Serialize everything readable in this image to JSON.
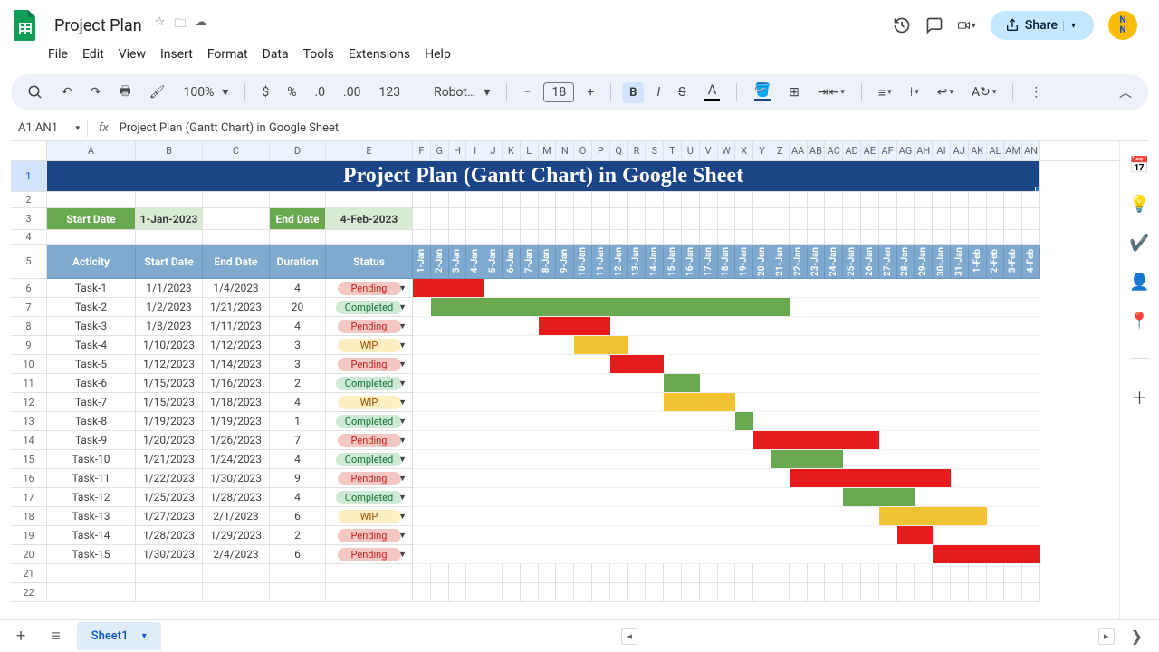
{
  "doc": {
    "name": "Project Plan"
  },
  "menubar": [
    "File",
    "Edit",
    "View",
    "Insert",
    "Format",
    "Data",
    "Tools",
    "Extensions",
    "Help"
  ],
  "toolbar": {
    "zoom": "100%",
    "font": "Robot…",
    "font_size": "18"
  },
  "share_label": "Share",
  "namebox": "A1:AN1",
  "formula": "Project Plan (Gantt Chart) in Google Sheet",
  "title_text": "Project Plan (Gantt Chart) in Google Sheet",
  "labels": {
    "start": "Start Date",
    "end": "End Date",
    "start_val": "1-Jan-2023",
    "end_val": "4-Feb-2023"
  },
  "headers": [
    "Acticity",
    "Start Date",
    "End Date",
    "Duration",
    "Status"
  ],
  "col_letters": [
    "A",
    "B",
    "C",
    "D",
    "E",
    "F",
    "G",
    "H",
    "I",
    "J",
    "K",
    "L",
    "M",
    "N",
    "O",
    "P",
    "Q",
    "R",
    "S",
    "T",
    "U",
    "V",
    "W",
    "X",
    "Y",
    "Z",
    "AA",
    "AB",
    "AC",
    "AD",
    "AE",
    "AF",
    "AG",
    "AH",
    "AI",
    "AJ",
    "AK",
    "AL",
    "AM",
    "AN"
  ],
  "col_widths": {
    "A": 98,
    "B": 74,
    "C": 74,
    "D": 62,
    "E": 96,
    "gantt": 19.8
  },
  "date_headers": [
    "1-Jan",
    "2-Jan",
    "3-Jan",
    "4-Jan",
    "5-Jan",
    "6-Jan",
    "7-Jan",
    "8-Jan",
    "9-Jan",
    "10-Jan",
    "11-Jan",
    "12-Jan",
    "13-Jan",
    "14-Jan",
    "15-Jan",
    "16-Jan",
    "17-Jan",
    "18-Jan",
    "19-Jan",
    "20-Jan",
    "21-Jan",
    "22-Jan",
    "23-Jan",
    "24-Jan",
    "25-Jan",
    "26-Jan",
    "27-Jan",
    "28-Jan",
    "29-Jan",
    "30-Jan",
    "31-Jan",
    "1-Feb",
    "2-Feb",
    "3-Feb",
    "4-Feb"
  ],
  "status_colors": {
    "Pending": {
      "bg": "#f4c7c3",
      "fg": "#c5221f"
    },
    "Completed": {
      "bg": "#ceead6",
      "fg": "#137333"
    },
    "WIP": {
      "bg": "#feefc3",
      "fg": "#994d00"
    }
  },
  "gantt_colors": {
    "Pending": "#e61c1c",
    "Completed": "#6aa84f",
    "WIP": "#f1c232"
  },
  "tasks": [
    {
      "name": "Task-1",
      "start": "1/1/2023",
      "end": "1/4/2023",
      "dur": "4",
      "status": "Pending",
      "g0": 0,
      "g1": 4
    },
    {
      "name": "Task-2",
      "start": "1/2/2023",
      "end": "1/21/2023",
      "dur": "20",
      "status": "Completed",
      "g0": 1,
      "g1": 21
    },
    {
      "name": "Task-3",
      "start": "1/8/2023",
      "end": "1/11/2023",
      "dur": "4",
      "status": "Pending",
      "g0": 7,
      "g1": 11
    },
    {
      "name": "Task-4",
      "start": "1/10/2023",
      "end": "1/12/2023",
      "dur": "3",
      "status": "WIP",
      "g0": 9,
      "g1": 12
    },
    {
      "name": "Task-5",
      "start": "1/12/2023",
      "end": "1/14/2023",
      "dur": "3",
      "status": "Pending",
      "g0": 11,
      "g1": 14
    },
    {
      "name": "Task-6",
      "start": "1/15/2023",
      "end": "1/16/2023",
      "dur": "2",
      "status": "Completed",
      "g0": 14,
      "g1": 16
    },
    {
      "name": "Task-7",
      "start": "1/15/2023",
      "end": "1/18/2023",
      "dur": "4",
      "status": "WIP",
      "g0": 14,
      "g1": 18
    },
    {
      "name": "Task-8",
      "start": "1/19/2023",
      "end": "1/19/2023",
      "dur": "1",
      "status": "Completed",
      "g0": 18,
      "g1": 19
    },
    {
      "name": "Task-9",
      "start": "1/20/2023",
      "end": "1/26/2023",
      "dur": "7",
      "status": "Pending",
      "g0": 19,
      "g1": 26
    },
    {
      "name": "Task-10",
      "start": "1/21/2023",
      "end": "1/24/2023",
      "dur": "4",
      "status": "Completed",
      "g0": 20,
      "g1": 24
    },
    {
      "name": "Task-11",
      "start": "1/22/2023",
      "end": "1/30/2023",
      "dur": "9",
      "status": "Pending",
      "g0": 21,
      "g1": 30
    },
    {
      "name": "Task-12",
      "start": "1/25/2023",
      "end": "1/28/2023",
      "dur": "4",
      "status": "Completed",
      "g0": 24,
      "g1": 28
    },
    {
      "name": "Task-13",
      "start": "1/27/2023",
      "end": "2/1/2023",
      "dur": "6",
      "status": "WIP",
      "g0": 26,
      "g1": 32
    },
    {
      "name": "Task-14",
      "start": "1/28/2023",
      "end": "1/29/2023",
      "dur": "2",
      "status": "Pending",
      "g0": 27,
      "g1": 29
    },
    {
      "name": "Task-15",
      "start": "1/30/2023",
      "end": "2/4/2023",
      "dur": "6",
      "status": "Pending",
      "g0": 29,
      "g1": 35
    }
  ],
  "sheet_tab": "Sheet1"
}
